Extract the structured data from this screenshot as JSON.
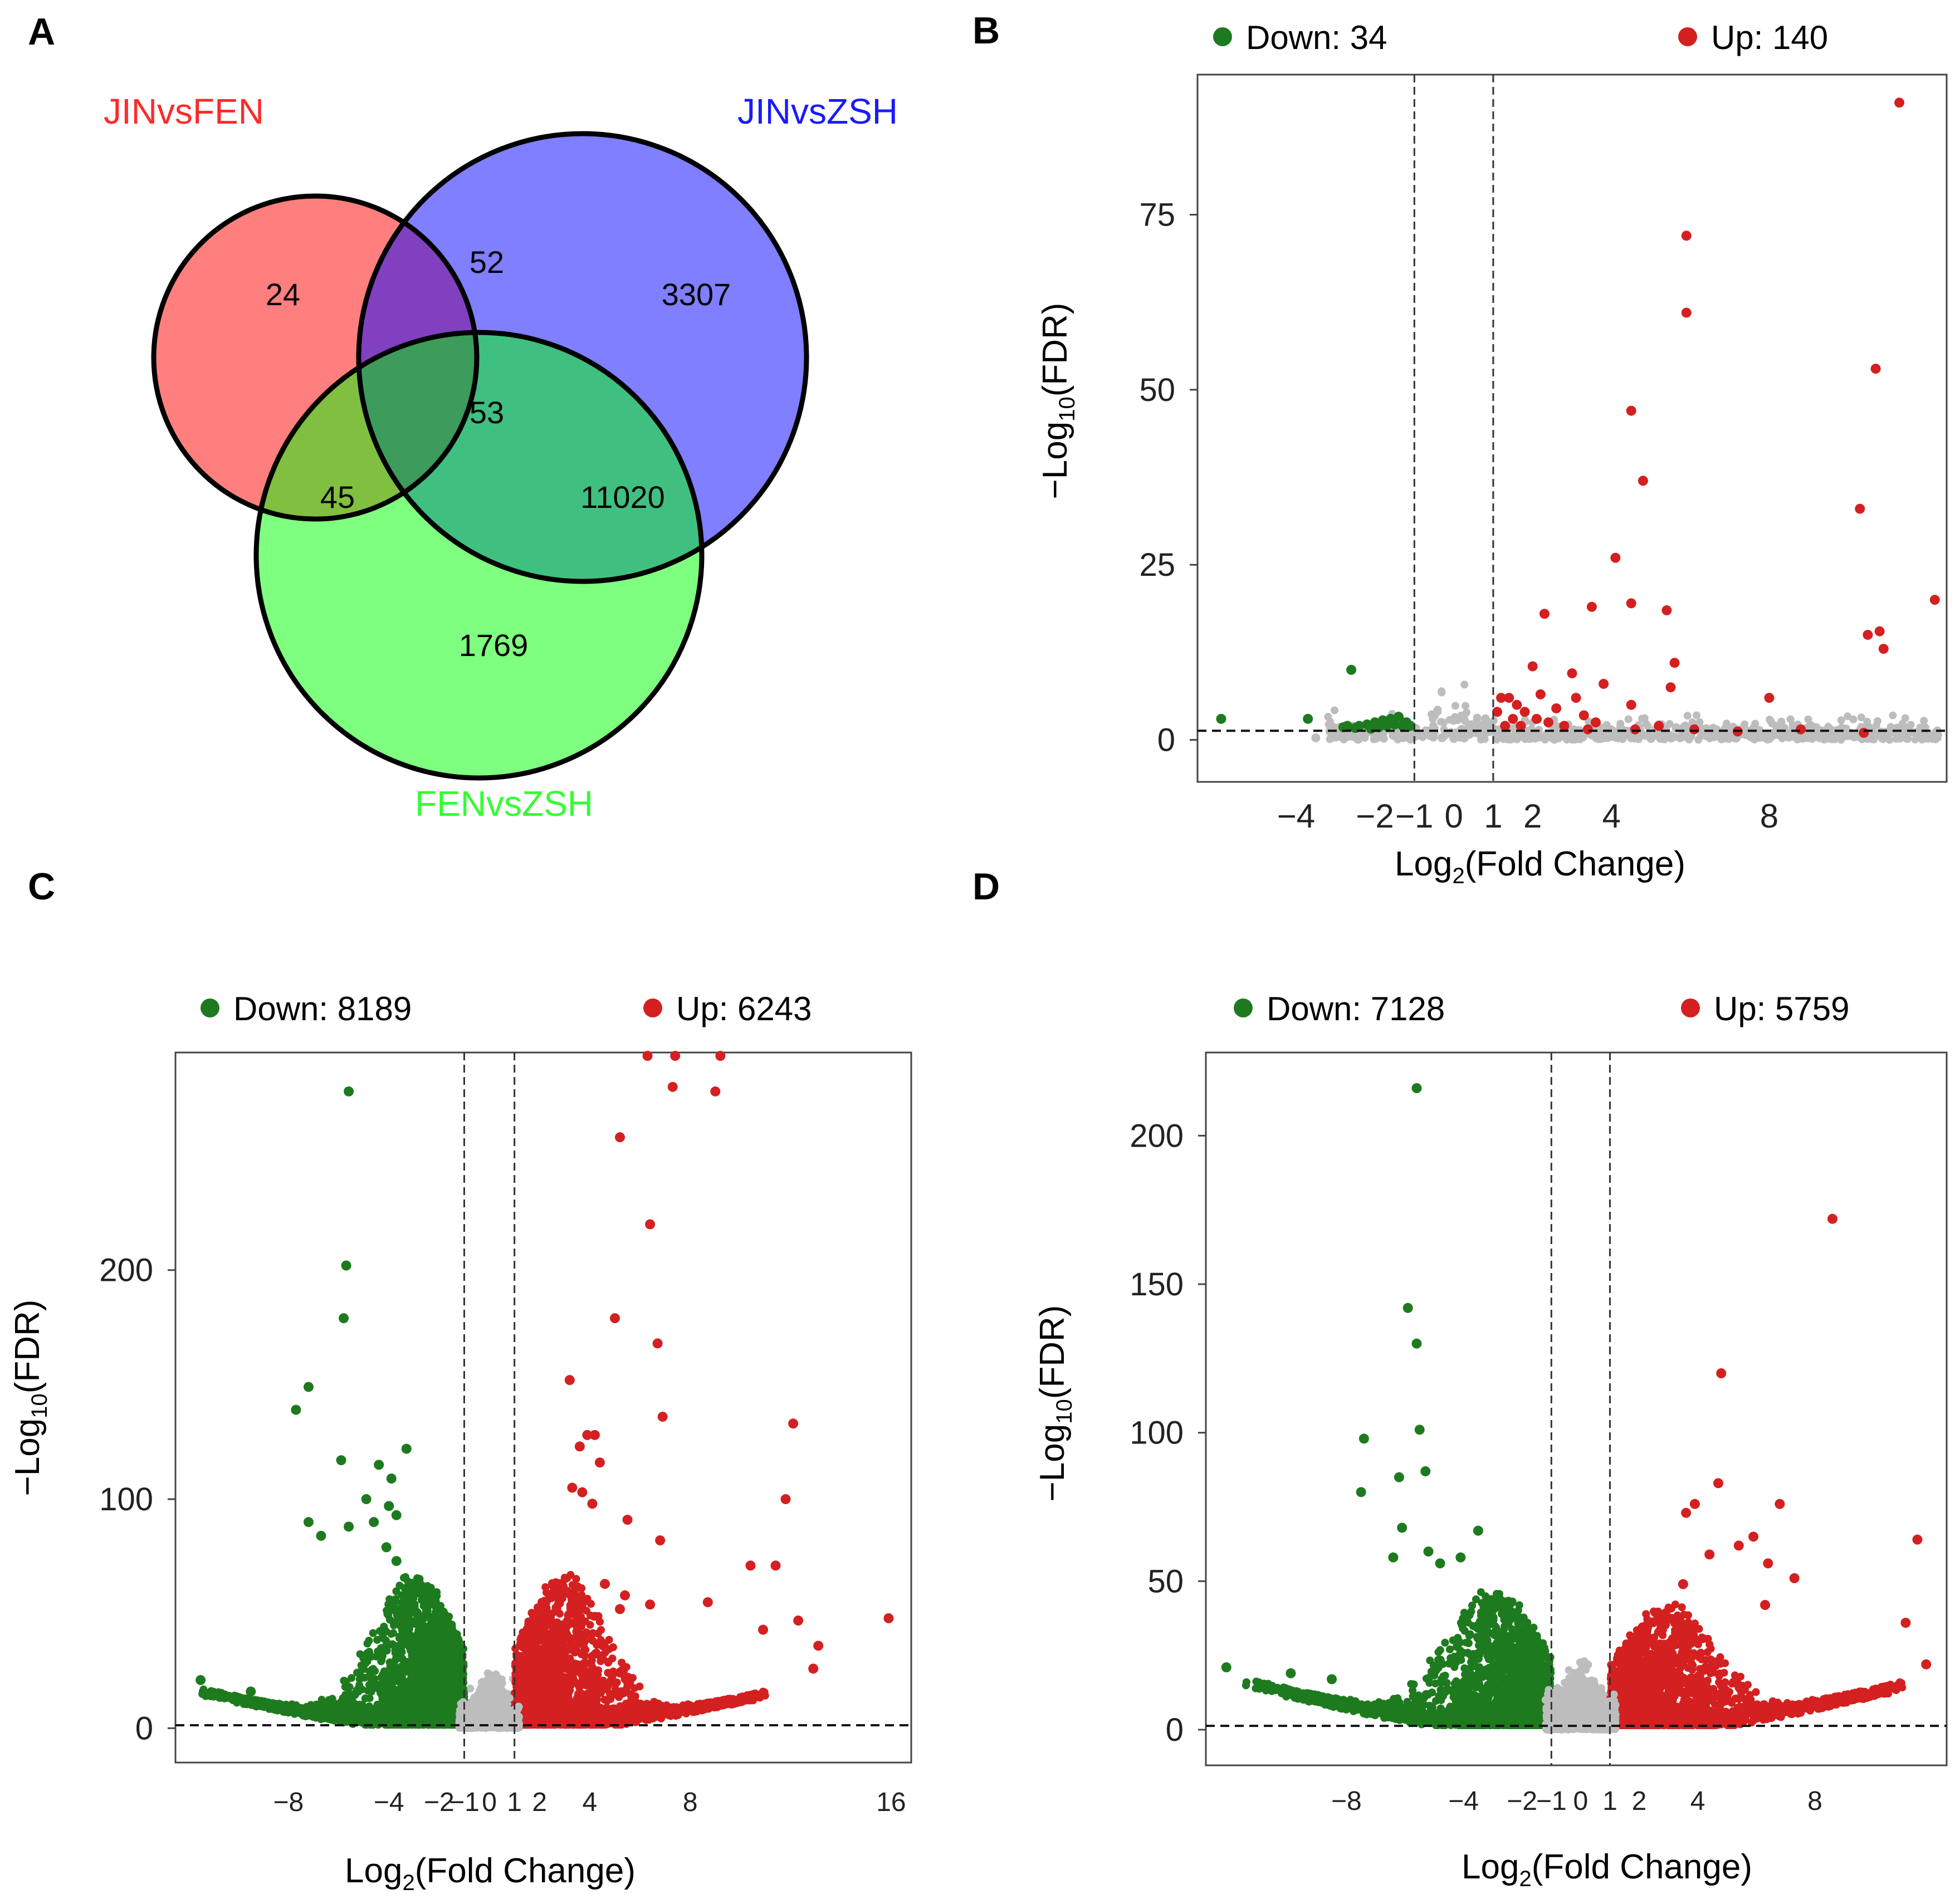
{
  "panels": {
    "A": {
      "label": "A",
      "venn": {
        "sets": [
          {
            "name": "JINvsFEN",
            "color": "#ff2a2a",
            "fill": "#ff7f7f"
          },
          {
            "name": "JINvsZSH",
            "color": "#1a1aff",
            "fill": "#7f7fff"
          },
          {
            "name": "FENvsZSH",
            "color": "#33ff33",
            "fill": "#7fff7f"
          }
        ],
        "regions": {
          "JINvsFEN_only": "24",
          "JINvsFEN_JINvsZSH": "52",
          "JINvsZSH_only": "3307",
          "all_three": "53",
          "JINvsFEN_FENvsZSH": "45",
          "JINvsZSH_FENvsZSH": "11020",
          "FENvsZSH_only": "1769"
        },
        "region_fills": {
          "ab": "#8040c0",
          "ac": "#80bf40",
          "bc": "#40c080",
          "abc": "#3d9b5c"
        }
      }
    },
    "B": {
      "label": "B"
    },
    "C": {
      "label": "C"
    },
    "D": {
      "label": "D"
    }
  },
  "colors": {
    "down": "#1e7a1e",
    "up": "#d42020",
    "ns": "#bdbdbd"
  },
  "chart_data": [
    {
      "panel": "B",
      "type": "scatter",
      "legend": {
        "down": "Down: 34",
        "up": "Up: 140"
      },
      "xlabel": "Log2(Fold Change)",
      "ylabel": "-Log10(FDR)",
      "xticks": [
        -4,
        -2,
        -1,
        0,
        1,
        2,
        4,
        8
      ],
      "yticks": [
        0,
        25,
        50,
        75
      ],
      "xlim": [
        -6.5,
        12.5
      ],
      "ylim": [
        -6,
        95
      ],
      "thresholds": {
        "x": [
          -1,
          1
        ],
        "y": 1.3
      },
      "up_points": [
        [
          11.3,
          91
        ],
        [
          5.9,
          72
        ],
        [
          5.9,
          61
        ],
        [
          10.7,
          53
        ],
        [
          4.5,
          47
        ],
        [
          4.8,
          37
        ],
        [
          10.3,
          33
        ],
        [
          4.1,
          26
        ],
        [
          12.2,
          20
        ],
        [
          4.5,
          19.5
        ],
        [
          5.4,
          18.5
        ],
        [
          3.5,
          19
        ],
        [
          2.3,
          18
        ],
        [
          10.8,
          15.5
        ],
        [
          10.5,
          15
        ],
        [
          10.9,
          13
        ],
        [
          5.6,
          11
        ],
        [
          2,
          10.5
        ],
        [
          3,
          9.5
        ],
        [
          5.5,
          7.5
        ],
        [
          3.8,
          8
        ],
        [
          8,
          6
        ],
        [
          4.5,
          5
        ],
        [
          1.4,
          6
        ],
        [
          2.2,
          6.5
        ],
        [
          3.1,
          6
        ],
        [
          1.2,
          6
        ],
        [
          1.6,
          5
        ],
        [
          2.6,
          4.5
        ],
        [
          1.8,
          4
        ],
        [
          1.5,
          3
        ],
        [
          2.4,
          2.5
        ],
        [
          3.3,
          3.5
        ],
        [
          1.3,
          2
        ],
        [
          2.8,
          2
        ],
        [
          3.6,
          2.5
        ],
        [
          4.6,
          1.5
        ],
        [
          5.2,
          2
        ],
        [
          6.1,
          1.5
        ],
        [
          7.2,
          1.2
        ],
        [
          8.8,
          1.5
        ],
        [
          10.4,
          1
        ],
        [
          1.1,
          4
        ],
        [
          2.1,
          3
        ],
        [
          1.7,
          2
        ],
        [
          3.4,
          1.5
        ]
      ],
      "down_points": [
        [
          -5.9,
          3
        ],
        [
          -3.7,
          3
        ],
        [
          -2.6,
          10
        ],
        [
          -2.8,
          1.8
        ],
        [
          -2.4,
          2
        ],
        [
          -2.2,
          2.2
        ],
        [
          -2,
          2.5
        ],
        [
          -1.8,
          2.8
        ],
        [
          -1.6,
          3
        ],
        [
          -1.5,
          2.2
        ],
        [
          -1.3,
          2
        ],
        [
          -1.9,
          1.8
        ],
        [
          -2.7,
          2
        ],
        [
          -1.2,
          2.5
        ],
        [
          -1.4,
          3.3
        ],
        [
          -2.1,
          1.6
        ],
        [
          -2.5,
          1.7
        ],
        [
          -1.7,
          2
        ],
        [
          -1.1,
          2
        ]
      ],
      "ns_points": [
        [
          -0.8,
          0.5
        ],
        [
          -0.5,
          1
        ],
        [
          -0.3,
          0.3
        ],
        [
          0,
          0.2
        ],
        [
          0.3,
          0.5
        ],
        [
          0.6,
          1
        ],
        [
          0.9,
          1.2
        ],
        [
          -0.9,
          0.8
        ],
        [
          0.5,
          2
        ],
        [
          0.8,
          3
        ],
        [
          0.4,
          0.8
        ],
        [
          -0.6,
          0.6
        ],
        [
          1.5,
          0.4
        ],
        [
          2,
          0.3
        ],
        [
          2.5,
          0.5
        ],
        [
          3,
          0.3
        ],
        [
          4,
          0.5
        ],
        [
          5,
          0.2
        ],
        [
          6,
          0.5
        ],
        [
          7,
          0.3
        ],
        [
          8.5,
          0.4
        ],
        [
          9.5,
          0.3
        ],
        [
          10,
          0.6
        ],
        [
          11,
          0.3
        ],
        [
          12,
          0.5
        ],
        [
          -2,
          0.5
        ],
        [
          -3,
          0.4
        ],
        [
          -3.5,
          0.3
        ],
        [
          -2.5,
          0.8
        ],
        [
          -1.5,
          0.6
        ],
        [
          0.2,
          1.5
        ],
        [
          -0.2,
          0.8
        ],
        [
          0.7,
          1.8
        ],
        [
          1.2,
          0.6
        ],
        [
          6.5,
          0.5
        ],
        [
          7.5,
          0.6
        ],
        [
          8,
          0.2
        ],
        [
          9,
          0.5
        ],
        [
          11.5,
          0.2
        ],
        [
          3.5,
          0.7
        ],
        [
          4.5,
          0.3
        ],
        [
          5.5,
          0.6
        ]
      ],
      "ns_band": {
        "x0": -3.2,
        "x1": 12.3
      }
    },
    {
      "panel": "C",
      "type": "scatter",
      "legend": {
        "down": "Down: 8189",
        "up": "Up: 6243"
      },
      "xlabel": "Log2(Fold Change)",
      "ylabel": "-Log10(FDR)",
      "xticks": [
        -8,
        -4,
        -2,
        -1,
        0,
        1,
        2,
        4,
        8,
        16
      ],
      "yticks": [
        0,
        100,
        200
      ],
      "xlim": [
        -12.5,
        16.8
      ],
      "ylim": [
        -15,
        295
      ],
      "thresholds": {
        "x": [
          -1,
          1
        ],
        "y": 1.3
      },
      "up_points": [
        [
          6.3,
          295
        ],
        [
          7.4,
          295
        ],
        [
          9.2,
          295
        ],
        [
          7.3,
          280
        ],
        [
          9,
          278
        ],
        [
          5.2,
          258
        ],
        [
          6.4,
          220
        ],
        [
          6.7,
          168
        ],
        [
          6.9,
          136
        ],
        [
          3.2,
          152
        ],
        [
          5,
          179
        ],
        [
          4.2,
          128
        ],
        [
          3.6,
          123
        ],
        [
          4.4,
          116
        ],
        [
          3.9,
          128
        ],
        [
          12.1,
          133
        ],
        [
          11.8,
          100
        ],
        [
          11.4,
          71
        ],
        [
          10.4,
          71
        ],
        [
          12.3,
          47
        ],
        [
          15.9,
          48
        ],
        [
          13.1,
          36
        ],
        [
          12.9,
          26
        ],
        [
          10.9,
          43
        ],
        [
          8.7,
          55
        ],
        [
          6.4,
          54
        ],
        [
          5.2,
          52
        ],
        [
          4.6,
          63
        ],
        [
          5.4,
          58
        ],
        [
          6.8,
          82
        ],
        [
          5.5,
          91
        ],
        [
          4.1,
          98
        ],
        [
          3.7,
          103
        ],
        [
          3.3,
          105
        ]
      ],
      "down_points": [
        [
          -5.6,
          278
        ],
        [
          -5.7,
          202
        ],
        [
          -5.8,
          179
        ],
        [
          -7.2,
          149
        ],
        [
          -7.7,
          139
        ],
        [
          -3.3,
          122
        ],
        [
          -5.9,
          117
        ],
        [
          -3.9,
          109
        ],
        [
          -4.4,
          115
        ],
        [
          -4.9,
          100
        ],
        [
          -4,
          97
        ],
        [
          -3.7,
          93
        ],
        [
          -4.6,
          90
        ],
        [
          -7.2,
          90
        ],
        [
          -6.7,
          84
        ],
        [
          -5.6,
          88
        ],
        [
          -4.1,
          79
        ],
        [
          -3.7,
          73
        ],
        [
          -11.5,
          21
        ],
        [
          -9.5,
          16
        ]
      ],
      "clouds": [
        {
          "kind": "down",
          "cx": -3.2,
          "spread": 3.2,
          "tail": [
            -11.5,
            -1
          ],
          "ymax": 65
        },
        {
          "kind": "up",
          "cx": 2.5,
          "spread": 3.0,
          "tail": [
            1,
            11
          ],
          "ymax": 65
        }
      ],
      "ns_band": {
        "x0": -1.2,
        "x1": 1.2
      }
    },
    {
      "panel": "D",
      "type": "scatter",
      "legend": {
        "down": "Down: 7128",
        "up": "Up: 5759"
      },
      "xlabel": "Log2(Fold Change)",
      "ylabel": "-Log10(FDR)",
      "xticks": [
        -8,
        -4,
        -2,
        -1,
        0,
        1,
        2,
        4,
        8
      ],
      "yticks": [
        0,
        50,
        100,
        150,
        200
      ],
      "xlim": [
        -12.8,
        12.5
      ],
      "ylim": [
        -12,
        228
      ],
      "thresholds": {
        "x": [
          -1,
          1
        ],
        "y": 1.3
      },
      "up_points": [
        [
          8.6,
          172
        ],
        [
          4.8,
          120
        ],
        [
          11.5,
          64
        ],
        [
          11.1,
          36
        ],
        [
          11.8,
          22
        ],
        [
          6.8,
          76
        ],
        [
          5.9,
          65
        ],
        [
          4.7,
          83
        ],
        [
          3.6,
          73
        ],
        [
          3.9,
          76
        ],
        [
          5.4,
          62
        ],
        [
          4.4,
          59
        ],
        [
          3.5,
          49
        ],
        [
          6.4,
          56
        ],
        [
          7.3,
          51
        ],
        [
          6.3,
          42
        ]
      ],
      "down_points": [
        [
          -5.6,
          216
        ],
        [
          -5.9,
          142
        ],
        [
          -5.6,
          130
        ],
        [
          -5.5,
          101
        ],
        [
          -7.4,
          98
        ],
        [
          -6.2,
          85
        ],
        [
          -5.3,
          87
        ],
        [
          -7.5,
          80
        ],
        [
          -6.1,
          68
        ],
        [
          -6.4,
          58
        ],
        [
          -5.2,
          60
        ],
        [
          -3.5,
          67
        ],
        [
          -4.1,
          58
        ],
        [
          -4.8,
          56
        ],
        [
          -12.1,
          21
        ],
        [
          -9.9,
          19
        ],
        [
          -8.5,
          17
        ],
        [
          -8.6,
          9
        ]
      ],
      "clouds": [
        {
          "kind": "down",
          "cx": -3.2,
          "spread": 3.2,
          "tail": [
            -11.5,
            -1
          ],
          "ymax": 45
        },
        {
          "kind": "up",
          "cx": 2.5,
          "spread": 3.0,
          "tail": [
            1,
            11
          ],
          "ymax": 40
        }
      ],
      "ns_band": {
        "x0": -1.2,
        "x1": 1.2
      }
    }
  ]
}
